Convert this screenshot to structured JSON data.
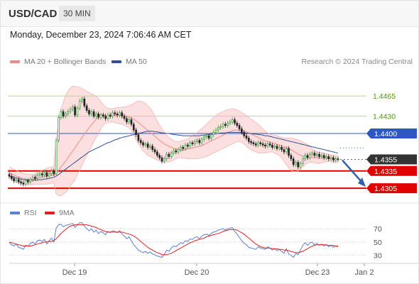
{
  "header": {
    "symbol": "USD/CAD",
    "timeframe": "30 MIN",
    "datetime": "Monday, December 23, 2024 7:06:46 AM CET",
    "copyright": "Research © 2024 Trading Central"
  },
  "legend": {
    "bollinger": {
      "label": "MA 20 + Bollinger Bands",
      "color": "#f08a8a"
    },
    "ma50": {
      "label": "MA 50",
      "color": "#2f4f8f"
    },
    "rsi": {
      "label": "RSI",
      "color": "#5b7fd4"
    },
    "rsi_ma": {
      "label": "9MA",
      "color": "#e02020"
    }
  },
  "colors": {
    "up": "#3a9a3a",
    "down": "#222222",
    "band_fill": "#fbdada",
    "level_green": "#b7d98a",
    "resistance_blue": "#2f57c4",
    "support_red": "#e00000",
    "current_price_bg": "#333333",
    "arrow": "#2f5fa8"
  },
  "chart_data": {
    "type": "candlestick",
    "ylim": [
      1.4283,
      1.4485
    ],
    "x_ticks": [
      "Dec 19",
      "Dec 20",
      "Dec 23",
      "Jan 2"
    ],
    "price_levels": [
      {
        "value": 1.4465,
        "label": "1.4465",
        "kind": "resistance"
      },
      {
        "value": 1.443,
        "label": "1.4430",
        "kind": "resistance"
      },
      {
        "value": 1.44,
        "label": "1.4400",
        "kind": "pivot"
      },
      {
        "value": 1.4355,
        "label": "1.4355",
        "kind": "last"
      },
      {
        "value": 1.4335,
        "label": "1.4335",
        "kind": "support"
      },
      {
        "value": 1.4305,
        "label": "1.4305",
        "kind": "support"
      }
    ],
    "close": [
      1.4326,
      1.4322,
      1.4318,
      1.432,
      1.4316,
      1.4314,
      1.4312,
      1.4318,
      1.4316,
      1.432,
      1.4324,
      1.4322,
      1.4328,
      1.433,
      1.4328,
      1.4332,
      1.4326,
      1.433,
      1.4335,
      1.433,
      1.4388,
      1.4428,
      1.4438,
      1.443,
      1.4434,
      1.4438,
      1.4442,
      1.4446,
      1.4432,
      1.4444,
      1.4456,
      1.446,
      1.4448,
      1.444,
      1.4434,
      1.4438,
      1.443,
      1.4434,
      1.4428,
      1.4432,
      1.443,
      1.4426,
      1.4432,
      1.443,
      1.4436,
      1.4434,
      1.4432,
      1.4436,
      1.443,
      1.4426,
      1.442,
      1.4424,
      1.4416,
      1.4406,
      1.4398,
      1.4388,
      1.4384,
      1.438,
      1.4382,
      1.4376,
      1.4378,
      1.4372,
      1.4368,
      1.4362,
      1.4358,
      1.4352,
      1.4356,
      1.4364,
      1.436,
      1.4366,
      1.437,
      1.4368,
      1.4372,
      1.4376,
      1.4374,
      1.438,
      1.4378,
      1.4384,
      1.4382,
      1.4386,
      1.4388,
      1.4384,
      1.439,
      1.4394,
      1.4396,
      1.4392,
      1.4398,
      1.4402,
      1.4406,
      1.441,
      1.4412,
      1.4416,
      1.4414,
      1.4418,
      1.442,
      1.4424,
      1.4418,
      1.4414,
      1.4408,
      1.4402,
      1.4396,
      1.4392,
      1.4386,
      1.4384,
      1.4382,
      1.438,
      1.4384,
      1.4382,
      1.438,
      1.4378,
      1.4382,
      1.438,
      1.4376,
      1.4378,
      1.4374,
      1.4376,
      1.4372,
      1.4368,
      1.4374,
      1.4362,
      1.4356,
      1.4346,
      1.435,
      1.4342,
      1.4348,
      1.4356,
      1.4362,
      1.4358,
      1.4364,
      1.4366,
      1.4362,
      1.4364,
      1.436,
      1.4362,
      1.4358,
      1.436,
      1.4356,
      1.4358,
      1.4354,
      1.4356,
      1.4355
    ],
    "ma20": [
      1.4332,
      1.433,
      1.4328,
      1.4326,
      1.4325,
      1.4323,
      1.4322,
      1.4321,
      1.432,
      1.432,
      1.432,
      1.4321,
      1.4322,
      1.4323,
      1.4324,
      1.4325,
      1.4326,
      1.4327,
      1.4328,
      1.4328,
      1.4331,
      1.4336,
      1.4342,
      1.4347,
      1.4352,
      1.4358,
      1.4364,
      1.437,
      1.4375,
      1.4381,
      1.4387,
      1.4393,
      1.4399,
      1.4404,
      1.441,
      1.4415,
      1.442,
      1.4425,
      1.443,
      1.4433,
      1.4433,
      1.4431,
      1.443,
      1.443,
      1.4431,
      1.4432,
      1.4432,
      1.4432,
      1.4432,
      1.4431,
      1.443,
      1.4429,
      1.4427,
      1.4425,
      1.4422,
      1.4419,
      1.4416,
      1.4412,
      1.4409,
      1.4405,
      1.4402,
      1.4399,
      1.4395,
      1.4392,
      1.4388,
      1.4385,
      1.4382,
      1.438,
      1.4378,
      1.4376,
      1.4374,
      1.4373,
      1.4372,
      1.4371,
      1.4371,
      1.4372,
      1.4373,
      1.4374,
      1.4375,
      1.4376,
      1.4377,
      1.4378,
      1.4379,
      1.4381,
      1.4383,
      1.4385,
      1.4387,
      1.4389,
      1.4391,
      1.4393,
      1.4395,
      1.4397,
      1.4399,
      1.4401,
      1.4403,
      1.4405,
      1.4406,
      1.4406,
      1.4406,
      1.4405,
      1.4404,
      1.4403,
      1.4401,
      1.4399,
      1.4397,
      1.4395,
      1.4393,
      1.4391,
      1.4389,
      1.4387,
      1.4386,
      1.4385,
      1.4384,
      1.4383,
      1.4381,
      1.438,
      1.4378,
      1.4377,
      1.4376,
      1.4374,
      1.4372,
      1.4369,
      1.4367,
      1.4364,
      1.4362,
      1.4361,
      1.436,
      1.4359,
      1.4358,
      1.4358,
      1.4358,
      1.4358,
      1.4358,
      1.4358,
      1.4357,
      1.4357,
      1.4357,
      1.4357,
      1.4356,
      1.4356,
      1.4356
    ],
    "bb_upper": [
      1.4342,
      1.434,
      1.4338,
      1.4336,
      1.4334,
      1.4332,
      1.4331,
      1.433,
      1.4329,
      1.4329,
      1.4329,
      1.433,
      1.4332,
      1.4334,
      1.4336,
      1.4338,
      1.434,
      1.4341,
      1.4342,
      1.4343,
      1.439,
      1.442,
      1.444,
      1.4455,
      1.4466,
      1.4474,
      1.4479,
      1.4482,
      1.4482,
      1.4481,
      1.448,
      1.4478,
      1.4476,
      1.4473,
      1.4471,
      1.4469,
      1.4467,
      1.4465,
      1.4461,
      1.4455,
      1.445,
      1.4446,
      1.4444,
      1.4443,
      1.4443,
      1.4444,
      1.4445,
      1.4445,
      1.4446,
      1.4446,
      1.4447,
      1.4448,
      1.445,
      1.4452,
      1.4455,
      1.4456,
      1.4456,
      1.4455,
      1.4452,
      1.4448,
      1.4444,
      1.4438,
      1.443,
      1.4422,
      1.4414,
      1.4408,
      1.4402,
      1.4397,
      1.4393,
      1.439,
      1.4388,
      1.4386,
      1.4386,
      1.4387,
      1.4388,
      1.4389,
      1.4391,
      1.4393,
      1.4396,
      1.4399,
      1.4402,
      1.4405,
      1.4408,
      1.4412,
      1.4416,
      1.442,
      1.4424,
      1.4428,
      1.4431,
      1.4434,
      1.4436,
      1.4438,
      1.444,
      1.4441,
      1.4442,
      1.4443,
      1.4442,
      1.4441,
      1.4439,
      1.4436,
      1.4434,
      1.4431,
      1.4428,
      1.4425,
      1.4422,
      1.4419,
      1.4416,
      1.4412,
      1.4408,
      1.4404,
      1.4401,
      1.4399,
      1.4398,
      1.4397,
      1.4396,
      1.4395,
      1.4393,
      1.4392,
      1.4392,
      1.4392,
      1.4392,
      1.4391,
      1.439,
      1.4389,
      1.4387,
      1.4385,
      1.4383,
      1.4381,
      1.4378,
      1.4374,
      1.4371,
      1.4369,
      1.4368,
      1.4367,
      1.4366,
      1.4365,
      1.4364,
      1.4363,
      1.4362,
      1.4362,
      1.4362
    ],
    "bb_lower": [
      1.4322,
      1.432,
      1.4318,
      1.4316,
      1.4315,
      1.4314,
      1.4313,
      1.4312,
      1.4311,
      1.4311,
      1.4311,
      1.4312,
      1.4312,
      1.4312,
      1.4312,
      1.4312,
      1.4312,
      1.4313,
      1.4314,
      1.4314,
      1.4295,
      1.4292,
      1.4292,
      1.4295,
      1.4298,
      1.4302,
      1.4308,
      1.4314,
      1.432,
      1.4328,
      1.4336,
      1.4345,
      1.4354,
      1.4362,
      1.437,
      1.4378,
      1.4386,
      1.4393,
      1.4399,
      1.4408,
      1.4414,
      1.4418,
      1.4419,
      1.442,
      1.442,
      1.4419,
      1.4418,
      1.4417,
      1.4416,
      1.4414,
      1.4412,
      1.441,
      1.4405,
      1.4398,
      1.4389,
      1.4382,
      1.4376,
      1.437,
      1.4366,
      1.4362,
      1.436,
      1.4358,
      1.4356,
      1.4354,
      1.4352,
      1.4351,
      1.435,
      1.435,
      1.4351,
      1.4352,
      1.4354,
      1.4356,
      1.4358,
      1.4358,
      1.4357,
      1.4357,
      1.4356,
      1.4356,
      1.4356,
      1.4356,
      1.4356,
      1.4357,
      1.4358,
      1.4359,
      1.436,
      1.4362,
      1.4364,
      1.4366,
      1.4368,
      1.437,
      1.4372,
      1.4374,
      1.4376,
      1.4378,
      1.438,
      1.4382,
      1.4384,
      1.4386,
      1.4386,
      1.4385,
      1.4382,
      1.4378,
      1.4374,
      1.4372,
      1.437,
      1.4368,
      1.4366,
      1.4366,
      1.4366,
      1.4366,
      1.4367,
      1.4368,
      1.4368,
      1.4366,
      1.4364,
      1.4362,
      1.4358,
      1.4352,
      1.4346,
      1.434,
      1.4336,
      1.4334,
      1.4334,
      1.4335,
      1.4338,
      1.4342,
      1.4346,
      1.4349,
      1.435,
      1.435,
      1.4349,
      1.4348,
      1.4348,
      1.4349,
      1.435,
      1.4351,
      1.4352,
      1.4351,
      1.435,
      1.435,
      1.435
    ],
    "ma50": [
      1.4326,
      1.4325,
      1.4324,
      1.4323,
      1.4322,
      1.4321,
      1.432,
      1.432,
      1.4319,
      1.4319,
      1.4319,
      1.4319,
      1.4319,
      1.432,
      1.432,
      1.4321,
      1.4321,
      1.4322,
      1.4323,
      1.4324,
      1.4326,
      1.4329,
      1.4332,
      1.4335,
      1.4338,
      1.4341,
      1.4344,
      1.4347,
      1.435,
      1.4353,
      1.4356,
      1.4359,
      1.4362,
      1.4365,
      1.4368,
      1.437,
      1.4372,
      1.4374,
      1.4376,
      1.4378,
      1.438,
      1.4382,
      1.4384,
      1.4385,
      1.4387,
      1.4389,
      1.439,
      1.4392,
      1.4393,
      1.4394,
      1.4395,
      1.4396,
      1.4397,
      1.4398,
      1.4399,
      1.44,
      1.4401,
      1.4402,
      1.4403,
      1.4404,
      1.4404,
      1.4404,
      1.4403,
      1.4403,
      1.4402,
      1.4401,
      1.4401,
      1.44,
      1.44,
      1.4399,
      1.4398,
      1.4398,
      1.4397,
      1.4397,
      1.4396,
      1.4396,
      1.4396,
      1.4396,
      1.4396,
      1.4396,
      1.4396,
      1.4396,
      1.4397,
      1.4397,
      1.4398,
      1.4398,
      1.4399,
      1.4399,
      1.44,
      1.44,
      1.4401,
      1.4401,
      1.4401,
      1.4402,
      1.4402,
      1.4402,
      1.4402,
      1.4402,
      1.4402,
      1.4401,
      1.4401,
      1.4401,
      1.44,
      1.44,
      1.4399,
      1.4399,
      1.4398,
      1.4398,
      1.4397,
      1.4396,
      1.4396,
      1.4395,
      1.4394,
      1.4393,
      1.4392,
      1.4391,
      1.439,
      1.4389,
      1.4388,
      1.4387,
      1.4386,
      1.4385,
      1.4384,
      1.4383,
      1.4382,
      1.4381,
      1.438,
      1.4379,
      1.4378,
      1.4377,
      1.4376,
      1.4375,
      1.4374,
      1.4373,
      1.4372,
      1.4371,
      1.437,
      1.4369,
      1.4368,
      1.4367,
      1.4366
    ],
    "rsi": {
      "ticks": [
        70,
        50,
        30
      ],
      "ylim": [
        20,
        82
      ],
      "rsi": [
        49,
        46,
        44,
        47,
        42,
        41,
        39,
        45,
        44,
        48,
        50,
        47,
        52,
        53,
        51,
        54,
        47,
        52,
        56,
        50,
        71,
        76,
        77,
        73,
        75,
        76,
        77,
        78,
        72,
        76,
        79,
        79,
        74,
        70,
        67,
        70,
        65,
        68,
        63,
        66,
        64,
        61,
        66,
        64,
        67,
        66,
        64,
        67,
        62,
        59,
        55,
        58,
        52,
        46,
        42,
        38,
        36,
        34,
        36,
        33,
        35,
        32,
        31,
        29,
        28,
        27,
        31,
        38,
        36,
        41,
        44,
        43,
        46,
        49,
        48,
        52,
        51,
        55,
        54,
        57,
        58,
        55,
        59,
        61,
        62,
        60,
        63,
        65,
        66,
        68,
        69,
        70,
        68,
        70,
        71,
        72,
        66,
        62,
        57,
        52,
        48,
        46,
        42,
        41,
        40,
        39,
        43,
        41,
        40,
        39,
        43,
        41,
        38,
        40,
        37,
        39,
        36,
        33,
        40,
        32,
        30,
        27,
        33,
        31,
        38,
        45,
        49,
        45,
        49,
        50,
        46,
        48,
        45,
        47,
        44,
        46,
        43,
        45,
        42,
        44,
        43
      ],
      "ma9": [
        50,
        49,
        48,
        47,
        46,
        45,
        44,
        44,
        44,
        44,
        45,
        46,
        47,
        48,
        49,
        50,
        50,
        51,
        51,
        52,
        55,
        59,
        63,
        66,
        69,
        72,
        74,
        75,
        76,
        76,
        76,
        76,
        76,
        76,
        75,
        74,
        73,
        72,
        70,
        69,
        67,
        66,
        65,
        65,
        65,
        65,
        65,
        65,
        65,
        64,
        63,
        62,
        61,
        59,
        57,
        54,
        51,
        48,
        45,
        42,
        40,
        38,
        36,
        34,
        33,
        31,
        31,
        31,
        32,
        33,
        35,
        37,
        39,
        41,
        43,
        45,
        47,
        49,
        50,
        52,
        53,
        54,
        55,
        56,
        58,
        59,
        60,
        61,
        62,
        63,
        64,
        66,
        67,
        68,
        69,
        69,
        69,
        68,
        66,
        64,
        62,
        59,
        56,
        53,
        50,
        47,
        45,
        43,
        42,
        41,
        41,
        41,
        40,
        40,
        40,
        39,
        39,
        38,
        38,
        37,
        36,
        35,
        34,
        34,
        35,
        36,
        38,
        40,
        42,
        44,
        45,
        46,
        46,
        46,
        46,
        46,
        45,
        45,
        45,
        44,
        44
      ]
    }
  }
}
